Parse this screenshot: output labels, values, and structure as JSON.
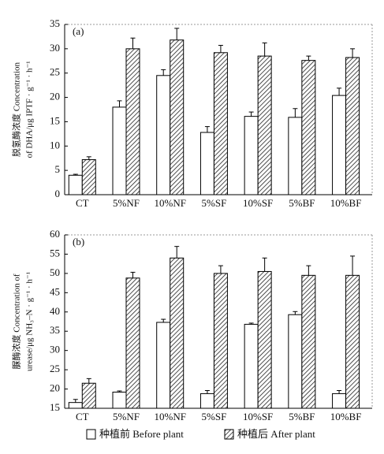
{
  "chart_data": [
    {
      "type": "bar",
      "panel_label": "(a)",
      "ylabel": [
        "脱氢酶浓度 Concentration",
        "of DHA/μg IPTF · g⁻¹ · h⁻¹"
      ],
      "categories": [
        "CT",
        "5%NF",
        "10%NF",
        "5%SF",
        "10%SF",
        "5%BF",
        "10%BF"
      ],
      "series": [
        {
          "name": "种植前 Before plant",
          "color": "#ffffff",
          "hatch": false,
          "values": [
            4,
            18,
            24.5,
            12.8,
            16.1,
            15.9,
            20.4
          ],
          "errors": [
            0.2,
            1.3,
            1.2,
            1.2,
            0.9,
            1.8,
            1.5
          ]
        },
        {
          "name": "种植后 After plant",
          "color": "#ffffff",
          "hatch": true,
          "values": [
            7.2,
            30,
            31.8,
            29.2,
            28.5,
            27.6,
            28.2
          ],
          "errors": [
            0.6,
            2.2,
            2.4,
            1.5,
            2.7,
            0.9,
            1.8
          ]
        }
      ],
      "ylim": [
        0,
        35
      ],
      "yticks": [
        0,
        5,
        10,
        15,
        20,
        25,
        30,
        35
      ]
    },
    {
      "type": "bar",
      "panel_label": "(b)",
      "ylabel": [
        "脲酶浓度 Concentration of",
        "urease/μg NH₃–N · g⁻¹ · h⁻¹"
      ],
      "categories": [
        "CT",
        "5%NF",
        "10%NF",
        "5%SF",
        "10%SF",
        "5%BF",
        "10%BF"
      ],
      "series": [
        {
          "color": "#ffffff",
          "hatch": false,
          "values": [
            16.5,
            19.2,
            37.3,
            18.8,
            36.8,
            39.3,
            18.8
          ],
          "errors": [
            0.8,
            0.3,
            0.8,
            0.8,
            0.3,
            0.8,
            0.8
          ]
        },
        {
          "color": "#ffffff",
          "hatch": true,
          "values": [
            21.5,
            48.8,
            54,
            50,
            50.5,
            49.5,
            49.5
          ],
          "errors": [
            1.2,
            1.5,
            3,
            2,
            3.5,
            2.5,
            5
          ]
        }
      ],
      "ylim": [
        15,
        60
      ],
      "yticks": [
        15,
        20,
        25,
        30,
        35,
        40,
        45,
        50,
        55,
        60
      ]
    }
  ]
}
